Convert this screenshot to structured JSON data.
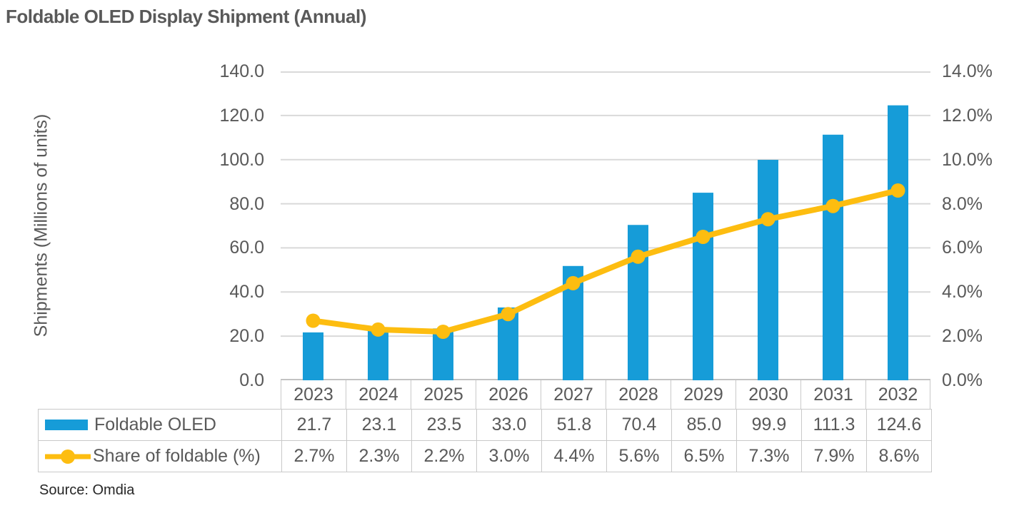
{
  "title": "Foldable OLED Display Shipment (Annual)",
  "source_note": "Source: Omdia",
  "chart_data": {
    "type": "combo-bar-line",
    "title": "Foldable OLED Display Shipment (Annual)",
    "categories": [
      "2023",
      "2024",
      "2025",
      "2026",
      "2027",
      "2028",
      "2029",
      "2030",
      "2031",
      "2032"
    ],
    "series": [
      {
        "name": "Foldable OLED",
        "type": "bar",
        "axis": "left",
        "color": "#169CD8",
        "values": [
          21.7,
          23.1,
          23.5,
          33.0,
          51.8,
          70.4,
          85.0,
          99.9,
          111.3,
          124.6
        ],
        "labels": [
          "21.7",
          "23.1",
          "23.5",
          "33.0",
          "51.8",
          "70.4",
          "85.0",
          "99.9",
          "111.3",
          "124.6"
        ]
      },
      {
        "name": "Share of foldable (%)",
        "type": "line",
        "axis": "right",
        "color": "#FDBD10",
        "values": [
          2.7,
          2.3,
          2.2,
          3.0,
          4.4,
          5.6,
          6.5,
          7.3,
          7.9,
          8.6
        ],
        "labels": [
          "2.7%",
          "2.3%",
          "2.2%",
          "3.0%",
          "4.4%",
          "5.6%",
          "6.5%",
          "7.3%",
          "7.9%",
          "8.6%"
        ]
      }
    ],
    "left_axis": {
      "title": "Shipments (Millions of units)",
      "min": 0,
      "max": 140,
      "step": 20,
      "tick_labels": [
        "0.0",
        "20.0",
        "40.0",
        "60.0",
        "80.0",
        "100.0",
        "120.0",
        "140.0"
      ]
    },
    "right_axis": {
      "min": 0,
      "max": 14,
      "step": 2,
      "tick_labels": [
        "0.0%",
        "2.0%",
        "4.0%",
        "6.0%",
        "8.0%",
        "10.0%",
        "12.0%",
        "14.0%"
      ]
    },
    "grid": "horizontal",
    "legend_position": "data-table-left",
    "data_table_shown": true
  },
  "colors": {
    "bar": "#169CD8",
    "line": "#FDBD10",
    "text": "#595959",
    "title_text": "#595959",
    "gridline": "#D9D9D9",
    "axis_line": "#C3C3C3",
    "table_border": "#C9C9C9"
  }
}
